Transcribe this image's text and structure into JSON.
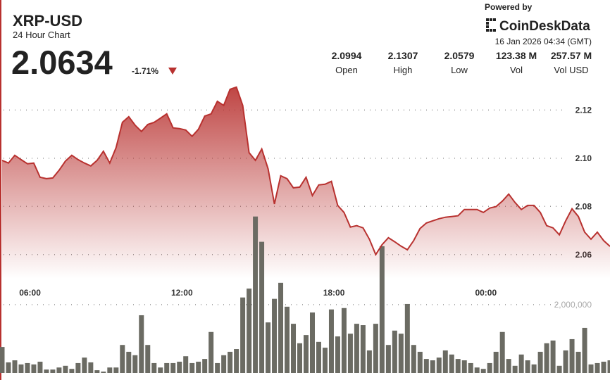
{
  "header": {
    "symbol": "XRP-USD",
    "subtitle": "24 Hour Chart",
    "price": "2.0634",
    "change": "-1.71%",
    "powered_by": "Powered by",
    "brand": "CoinDeskData",
    "timestamp": "16 Jan 2026 04:34 (GMT)",
    "stats": [
      {
        "value": "2.0994",
        "label": "Open"
      },
      {
        "value": "2.1307",
        "label": "High"
      },
      {
        "value": "2.0579",
        "label": "Low"
      },
      {
        "value": "123.38 M",
        "label": "Vol"
      },
      {
        "value": "257.57 M",
        "label": "Vol USD"
      }
    ]
  },
  "chart_data": {
    "type": "area",
    "color": "#b8312f",
    "grid": true,
    "x": [
      0,
      0.25,
      0.5,
      0.75,
      1,
      1.25,
      1.5,
      1.75,
      2,
      2.25,
      2.5,
      2.75,
      3,
      3.25,
      3.5,
      3.75,
      4,
      4.25,
      4.5,
      4.75,
      5,
      5.25,
      5.5,
      5.75,
      6,
      6.25,
      6.5,
      6.75,
      7,
      7.25,
      7.5,
      7.75,
      8,
      8.25,
      8.5,
      8.75,
      9,
      9.25,
      9.5,
      9.75,
      10,
      10.25,
      10.5,
      10.75,
      11,
      11.25,
      11.5,
      11.75,
      12,
      12.25,
      12.5,
      12.75,
      13,
      13.25,
      13.5,
      13.75,
      14,
      14.25,
      14.5,
      14.75,
      15,
      15.25,
      15.5,
      15.75,
      16,
      16.25,
      16.5,
      16.75,
      17,
      17.25,
      17.5,
      17.75,
      18,
      18.25,
      18.5,
      18.75,
      19,
      19.25,
      19.5,
      19.75,
      20,
      20.25,
      20.5,
      20.75,
      21,
      21.25,
      21.5,
      21.75,
      22,
      22.25,
      22.5,
      22.75,
      23,
      23.25,
      23.5,
      23.75,
      24
    ],
    "values": [
      2.0991,
      2.098,
      2.1012,
      2.0994,
      2.0977,
      2.098,
      2.0921,
      2.0915,
      2.0918,
      2.095,
      2.0988,
      2.1012,
      2.0994,
      2.098,
      2.0968,
      2.0991,
      2.1029,
      2.098,
      2.1044,
      2.1149,
      2.1172,
      2.1137,
      2.1111,
      2.114,
      2.1149,
      2.1166,
      2.1184,
      2.1126,
      2.1123,
      2.1117,
      2.1091,
      2.112,
      2.1175,
      2.1184,
      2.1236,
      2.1219,
      2.1286,
      2.1295,
      2.1219,
      2.1023,
      2.0991,
      2.1038,
      2.0956,
      2.081,
      2.0927,
      2.0915,
      2.0877,
      2.088,
      2.0921,
      2.0845,
      2.0889,
      2.0892,
      2.0904,
      2.0804,
      2.0775,
      2.0714,
      2.072,
      2.0711,
      2.0664,
      2.06,
      2.0641,
      2.067,
      2.0653,
      2.0635,
      2.062,
      2.0658,
      2.0708,
      2.0731,
      2.074,
      2.0749,
      2.0755,
      2.0758,
      2.0761,
      2.0787,
      2.0787,
      2.0787,
      2.0775,
      2.0793,
      2.0799,
      2.0822,
      2.0851,
      2.0816,
      2.0787,
      2.0804,
      2.0804,
      2.0775,
      2.072,
      2.0711,
      2.0682,
      2.074,
      2.079,
      2.0758,
      2.0693,
      2.0664,
      2.0693,
      2.0658,
      2.0634
    ],
    "xlim": [
      0,
      24
    ],
    "xticks": [
      {
        "value": 1.1,
        "label": "06:00"
      },
      {
        "value": 7.1,
        "label": "12:00"
      },
      {
        "value": 13.1,
        "label": "18:00"
      },
      {
        "value": 19.1,
        "label": "00:00"
      }
    ],
    "ylim": [
      2.05,
      2.135
    ],
    "yticks": [
      2.06,
      2.08,
      {
        "value": 2.1,
        "label": "2.10"
      },
      2.12
    ],
    "volume": {
      "type": "bar",
      "color": "#6b6b63",
      "values": [
        760000,
        310000,
        370000,
        250000,
        290000,
        250000,
        330000,
        100000,
        100000,
        160000,
        210000,
        120000,
        290000,
        450000,
        310000,
        80000,
        40000,
        160000,
        160000,
        820000,
        620000,
        520000,
        1690000,
        820000,
        290000,
        160000,
        290000,
        290000,
        330000,
        490000,
        290000,
        330000,
        410000,
        1200000,
        290000,
        520000,
        620000,
        700000,
        2210000,
        2470000,
        4580000,
        3840000,
        1480000,
        2170000,
        2640000,
        1940000,
        1440000,
        870000,
        1110000,
        1770000,
        910000,
        740000,
        1860000,
        1070000,
        1900000,
        1150000,
        1440000,
        1400000,
        660000,
        1440000,
        3710000,
        820000,
        1240000,
        1150000,
        2020000,
        820000,
        620000,
        410000,
        370000,
        450000,
        660000,
        540000,
        410000,
        370000,
        290000,
        160000,
        120000,
        290000,
        620000,
        1200000,
        410000,
        210000,
        540000,
        370000,
        250000,
        620000,
        870000,
        950000,
        210000,
        660000,
        990000,
        620000,
        1320000,
        250000,
        290000,
        330000,
        370000
      ],
      "y2lim": [
        0,
        4800000
      ],
      "y2ticks": [
        {
          "value": 2000000,
          "label": "2,000,000"
        }
      ]
    }
  }
}
